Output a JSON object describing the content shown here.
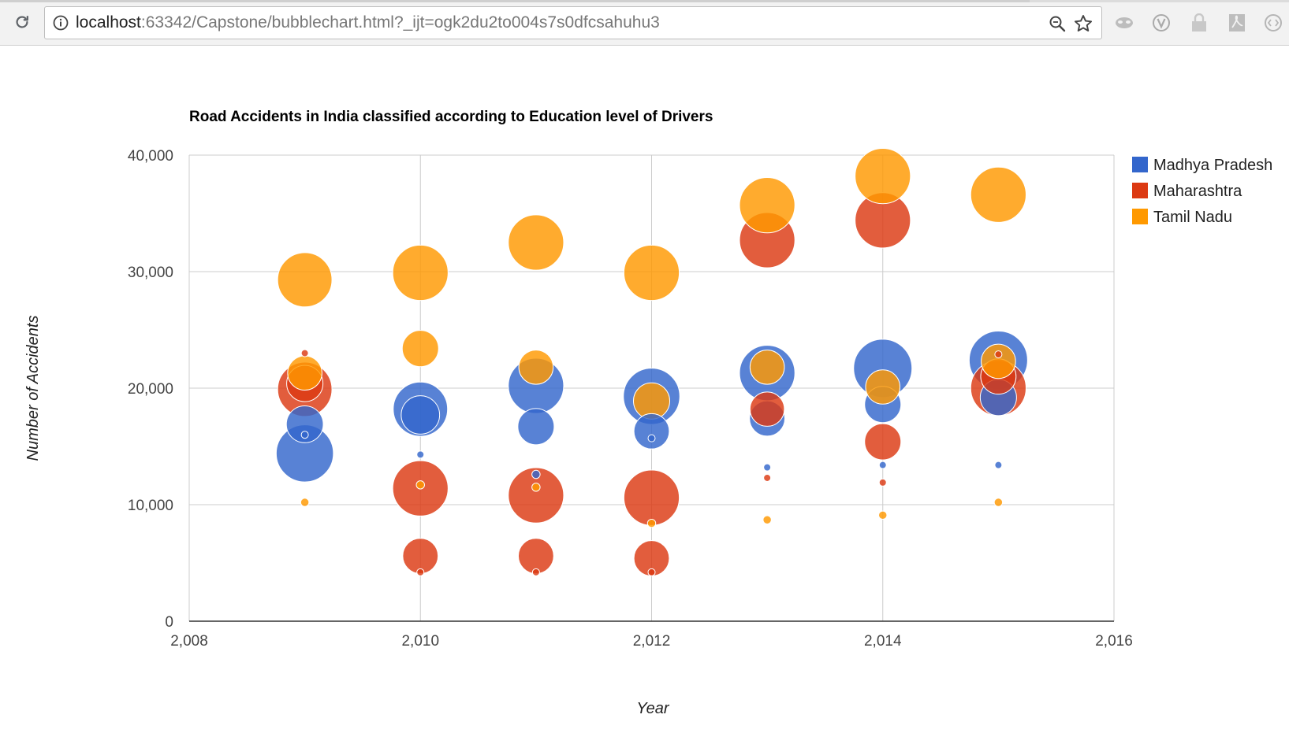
{
  "browser": {
    "url_host": "localhost",
    "url_rest": ":63342/Capstone/bubblechart.html?_ijt=ogk2du2to004s7s0dfcsahuhu3",
    "icons": [
      "reload-icon",
      "info-icon",
      "zoom-icon",
      "star-icon",
      "mask-extension-icon",
      "v-extension-icon",
      "lock-extension-icon",
      "pdf-extension-icon",
      "code-extension-icon"
    ]
  },
  "chart_data": {
    "type": "scatter",
    "subtype": "bubble",
    "title": "Road Accidents in India classified according to Education level of Drivers",
    "xlabel": "Year",
    "ylabel": "Number of Accidents",
    "xlim": [
      2008,
      2016
    ],
    "ylim": [
      0,
      40000
    ],
    "x_ticks": [
      "2,008",
      "2,010",
      "2,012",
      "2,014",
      "2,016"
    ],
    "y_ticks": [
      "0",
      "10,000",
      "20,000",
      "30,000",
      "40,000"
    ],
    "grid": true,
    "legend_position": "right",
    "series": [
      {
        "name": "Madhya Pradesh",
        "color": "#3366cc",
        "points": [
          {
            "x": 2009,
            "y": 14400,
            "size": 14400
          },
          {
            "x": 2009,
            "y": 16900,
            "size": 6000
          },
          {
            "x": 2009,
            "y": 16000,
            "size": 200
          },
          {
            "x": 2010,
            "y": 18200,
            "size": 13000
          },
          {
            "x": 2010,
            "y": 17700,
            "size": 6500
          },
          {
            "x": 2010,
            "y": 14300,
            "size": 200
          },
          {
            "x": 2011,
            "y": 20200,
            "size": 13500
          },
          {
            "x": 2011,
            "y": 16700,
            "size": 5800
          },
          {
            "x": 2011,
            "y": 12600,
            "size": 300
          },
          {
            "x": 2012,
            "y": 19300,
            "size": 14000
          },
          {
            "x": 2012,
            "y": 16300,
            "size": 5500
          },
          {
            "x": 2012,
            "y": 15700,
            "size": 200
          },
          {
            "x": 2013,
            "y": 21300,
            "size": 13500
          },
          {
            "x": 2013,
            "y": 17400,
            "size": 5500
          },
          {
            "x": 2013,
            "y": 13200,
            "size": 200
          },
          {
            "x": 2014,
            "y": 21700,
            "size": 15000
          },
          {
            "x": 2014,
            "y": 18600,
            "size": 5800
          },
          {
            "x": 2014,
            "y": 13400,
            "size": 200
          },
          {
            "x": 2015,
            "y": 22400,
            "size": 15000
          },
          {
            "x": 2015,
            "y": 19200,
            "size": 5800
          },
          {
            "x": 2015,
            "y": 13400,
            "size": 200
          }
        ]
      },
      {
        "name": "Maharashtra",
        "color": "#dc3912",
        "points": [
          {
            "x": 2009,
            "y": 19900,
            "size": 13000
          },
          {
            "x": 2009,
            "y": 20400,
            "size": 5800
          },
          {
            "x": 2009,
            "y": 23000,
            "size": 200
          },
          {
            "x": 2010,
            "y": 11400,
            "size": 13500
          },
          {
            "x": 2010,
            "y": 5600,
            "size": 5500
          },
          {
            "x": 2010,
            "y": 4200,
            "size": 200
          },
          {
            "x": 2011,
            "y": 10800,
            "size": 13500
          },
          {
            "x": 2011,
            "y": 5600,
            "size": 5500
          },
          {
            "x": 2011,
            "y": 4200,
            "size": 200
          },
          {
            "x": 2012,
            "y": 10600,
            "size": 13500
          },
          {
            "x": 2012,
            "y": 5400,
            "size": 5500
          },
          {
            "x": 2012,
            "y": 4200,
            "size": 200
          },
          {
            "x": 2013,
            "y": 32700,
            "size": 13500
          },
          {
            "x": 2013,
            "y": 18200,
            "size": 5200
          },
          {
            "x": 2013,
            "y": 12300,
            "size": 200
          },
          {
            "x": 2014,
            "y": 34400,
            "size": 13500
          },
          {
            "x": 2014,
            "y": 15400,
            "size": 5800
          },
          {
            "x": 2014,
            "y": 11900,
            "size": 200
          },
          {
            "x": 2015,
            "y": 20000,
            "size": 13500
          },
          {
            "x": 2015,
            "y": 21000,
            "size": 5500
          },
          {
            "x": 2015,
            "y": 22900,
            "size": 200
          }
        ]
      },
      {
        "name": "Tamil Nadu",
        "color": "#ff9900",
        "points": [
          {
            "x": 2009,
            "y": 29300,
            "size": 13000
          },
          {
            "x": 2009,
            "y": 21300,
            "size": 5200
          },
          {
            "x": 2009,
            "y": 10200,
            "size": 300
          },
          {
            "x": 2010,
            "y": 29900,
            "size": 13500
          },
          {
            "x": 2010,
            "y": 23400,
            "size": 5800
          },
          {
            "x": 2010,
            "y": 11700,
            "size": 300
          },
          {
            "x": 2011,
            "y": 32500,
            "size": 13500
          },
          {
            "x": 2011,
            "y": 21800,
            "size": 5200
          },
          {
            "x": 2011,
            "y": 11500,
            "size": 300
          },
          {
            "x": 2012,
            "y": 29900,
            "size": 13500
          },
          {
            "x": 2012,
            "y": 18900,
            "size": 5800
          },
          {
            "x": 2012,
            "y": 8400,
            "size": 300
          },
          {
            "x": 2013,
            "y": 35700,
            "size": 13500
          },
          {
            "x": 2013,
            "y": 21800,
            "size": 5200
          },
          {
            "x": 2013,
            "y": 8700,
            "size": 300
          },
          {
            "x": 2014,
            "y": 38200,
            "size": 13500
          },
          {
            "x": 2014,
            "y": 20100,
            "size": 5200
          },
          {
            "x": 2014,
            "y": 9100,
            "size": 300
          },
          {
            "x": 2015,
            "y": 36600,
            "size": 13500
          },
          {
            "x": 2015,
            "y": 22300,
            "size": 5200
          },
          {
            "x": 2015,
            "y": 10200,
            "size": 300
          }
        ]
      }
    ]
  }
}
